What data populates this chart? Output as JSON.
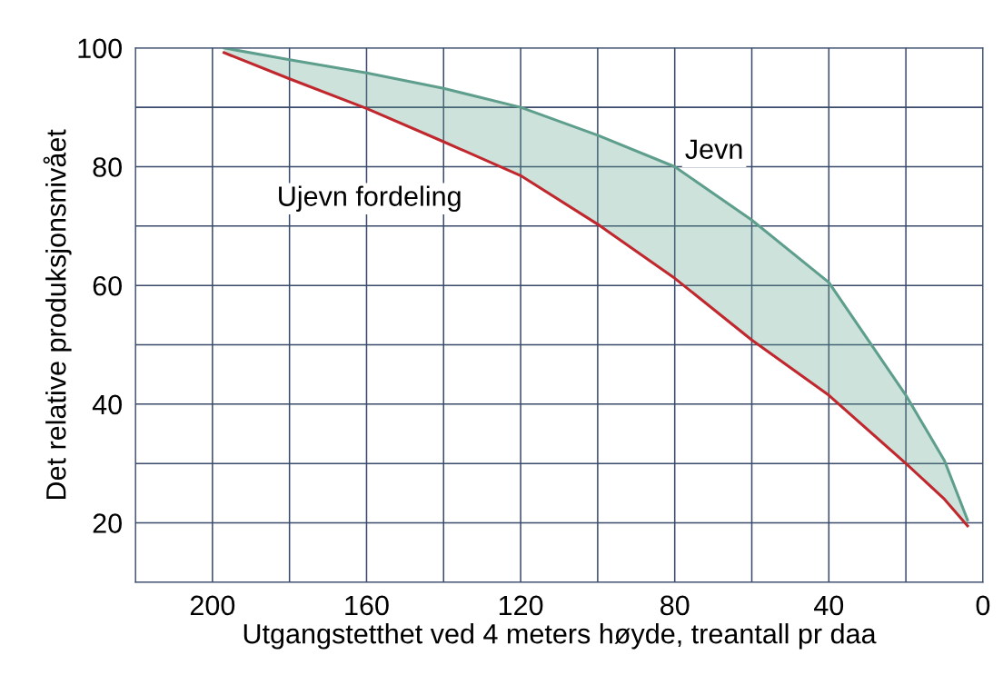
{
  "chart_data": {
    "type": "line",
    "xlabel": "Utgangstetthet ved 4 meters høyde, treantall pr daa",
    "ylabel": "Det relative produksjonsnivået",
    "x": [
      197,
      180,
      160,
      140,
      120,
      100,
      80,
      60,
      40,
      20,
      10,
      4
    ],
    "series": [
      {
        "name": "Ujevn fordeling",
        "color": "#c0282d",
        "values": [
          99.2,
          94.8,
          89.8,
          84.2,
          78.5,
          70.3,
          61.2,
          50.8,
          41.5,
          30,
          24,
          19.5
        ]
      },
      {
        "type": "area",
        "name": "Jevn",
        "color": "#5e9e8c",
        "values": [
          100,
          98,
          95.8,
          93.2,
          90,
          85.3,
          80,
          71,
          60.5,
          41.5,
          30.5,
          20.5
        ]
      }
    ],
    "xlim": [
      220,
      0
    ],
    "ylim": [
      10,
      100
    ],
    "xticks": [
      {
        "value": 220,
        "label": null
      },
      200,
      {
        "value": 180,
        "label": null
      },
      160,
      {
        "value": 140,
        "label": null
      },
      120,
      {
        "value": 100,
        "label": null
      },
      80,
      {
        "value": 60,
        "label": null
      },
      40,
      {
        "value": 20,
        "label": null
      },
      0
    ],
    "yticks": [
      {
        "value": 10,
        "label": null
      },
      20,
      {
        "value": 30,
        "label": null
      },
      40,
      {
        "value": 50,
        "label": null
      },
      60,
      {
        "value": 70,
        "label": null
      },
      80,
      {
        "value": 90,
        "label": null
      },
      100
    ],
    "grid": true
  }
}
